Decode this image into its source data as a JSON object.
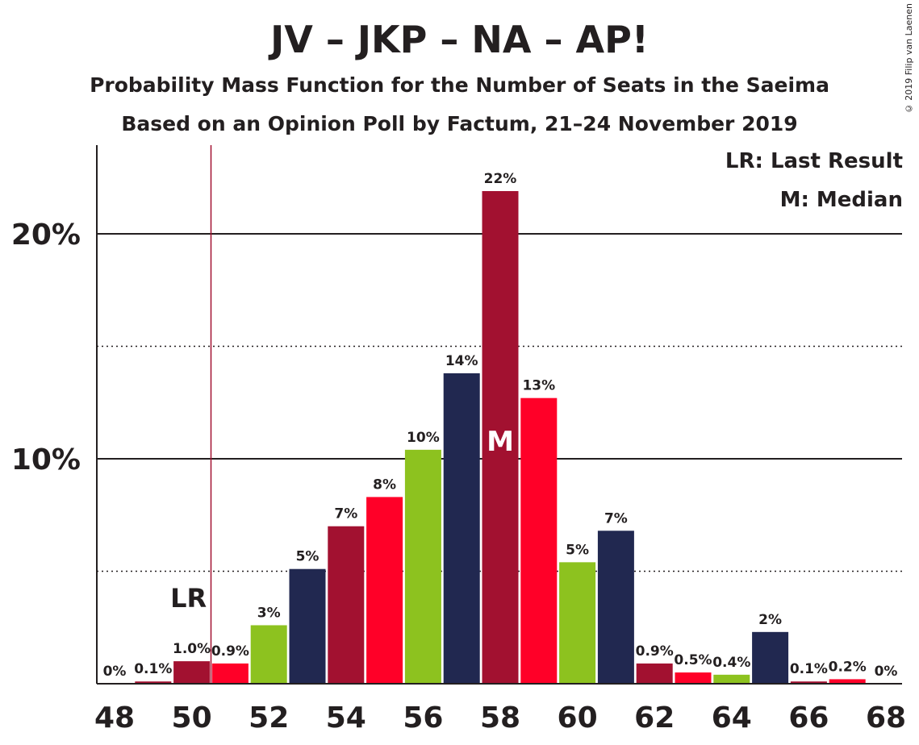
{
  "chart_data": {
    "type": "bar",
    "title": "JV – JKP – NA – AP!",
    "subtitle": "Probability Mass Function for the Number of Seats in the Saeima",
    "subtitle2": "Based on an Opinion Poll by Factum, 21–24 November 2019",
    "copyright": "© 2019 Filip van Laenen",
    "legend": {
      "last_result": "LR: Last Result",
      "median": "M: Median",
      "placement": "top-right"
    },
    "x": [
      48,
      49,
      50,
      51,
      52,
      53,
      54,
      55,
      56,
      57,
      58,
      59,
      60,
      61,
      62,
      63,
      64,
      65,
      66,
      67,
      68
    ],
    "values": [
      0,
      0.1,
      1.0,
      0.9,
      2.6,
      5.1,
      7.0,
      8.3,
      10.4,
      13.8,
      21.9,
      12.7,
      5.4,
      6.8,
      0.9,
      0.5,
      0.4,
      2.3,
      0.1,
      0.2,
      0
    ],
    "labels": [
      "0%",
      "0.1%",
      "1.0%",
      "0.9%",
      "3%",
      "5%",
      "7%",
      "8%",
      "10%",
      "14%",
      "22%",
      "13%",
      "5%",
      "7%",
      "0.9%",
      "0.5%",
      "0.4%",
      "2%",
      "0.1%",
      "0.2%",
      "0%"
    ],
    "colors": [
      "#a21130",
      "#a21130",
      "#a21130",
      "#ff0028",
      "#8dc21f",
      "#212850",
      "#a21130",
      "#ff0028",
      "#8dc21f",
      "#212850",
      "#a21130",
      "#ff0028",
      "#8dc21f",
      "#212850",
      "#a21130",
      "#ff0028",
      "#8dc21f",
      "#212850",
      "#a21130",
      "#ff0028",
      "#8dc21f"
    ],
    "x_ticks": [
      "48",
      "50",
      "52",
      "54",
      "56",
      "58",
      "60",
      "62",
      "64",
      "66",
      "68"
    ],
    "y_ticks": [
      "10%",
      "20%"
    ],
    "ylim": [
      0,
      24
    ],
    "grid": {
      "solid": [
        10,
        20
      ],
      "dotted": [
        5,
        15
      ]
    },
    "last_result": {
      "seat": 50,
      "label": "LR"
    },
    "median": {
      "seat": 58,
      "label": "M"
    }
  }
}
